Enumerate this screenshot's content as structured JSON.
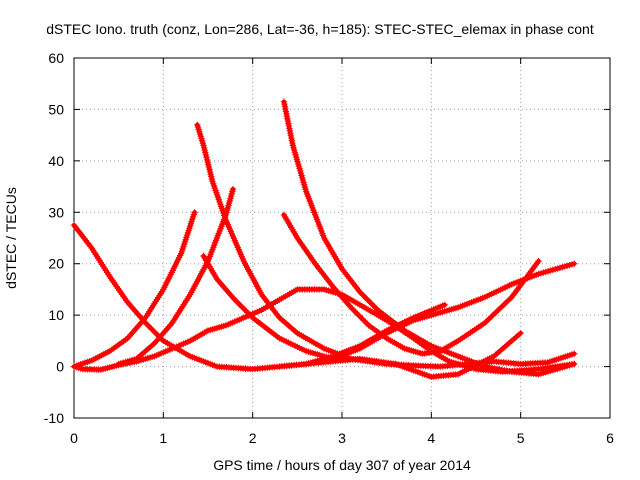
{
  "chart_data": {
    "type": "scatter",
    "title": "dSTEC Iono. truth (conz, Lon=286, Lat=-36, h=185): STEC-STEC_elemax in phase cont",
    "xlabel": "GPS time / hours of day 307 of year 2014",
    "ylabel": "dSTEC  / TECUs",
    "xlim": [
      0,
      6
    ],
    "ylim": [
      -10,
      60
    ],
    "xticks": [
      "0",
      "1",
      "2",
      "3",
      "4",
      "5",
      "6"
    ],
    "yticks": [
      "-10",
      "0",
      "10",
      "20",
      "30",
      "40",
      "50",
      "60"
    ],
    "grid": true,
    "legend": "none",
    "marker": "plus",
    "color": "#ff0000",
    "series": [
      {
        "x": [
          0.0,
          0.1,
          0.3,
          0.5,
          0.7,
          0.9,
          1.1,
          1.3,
          1.4,
          1.5,
          1.7,
          1.9,
          2.1,
          2.3,
          2.5,
          2.8,
          3.0,
          3.2,
          3.5,
          3.8,
          4.0,
          4.2,
          4.5,
          4.8,
          5.2,
          5.6
        ],
        "y": [
          0.0,
          -0.5,
          -0.6,
          0.3,
          1.0,
          2.0,
          3.5,
          5.0,
          6.0,
          7.0,
          8.0,
          9.5,
          11.0,
          13.0,
          15.0,
          15.0,
          14.0,
          12.0,
          9.0,
          5.5,
          3.0,
          1.0,
          -0.5,
          -1.0,
          -0.5,
          0.5
        ]
      },
      {
        "x": [
          0.0,
          0.2,
          0.4,
          0.6,
          0.8,
          1.0,
          1.2,
          1.35
        ],
        "y": [
          0.0,
          1.2,
          3.0,
          5.5,
          9.5,
          15.0,
          22.0,
          30.0
        ]
      },
      {
        "x": [
          0.0,
          0.2,
          0.4,
          0.6,
          0.8,
          1.0,
          1.3,
          1.6,
          2.0,
          2.3,
          2.6,
          2.9,
          3.2,
          3.6,
          4.0,
          4.3,
          4.7,
          5.0
        ],
        "y": [
          27.5,
          23.0,
          17.5,
          12.5,
          8.5,
          5.0,
          2.0,
          0.0,
          -0.5,
          0.0,
          0.5,
          1.0,
          1.5,
          0.5,
          -2.0,
          -1.5,
          2.0,
          6.5
        ]
      },
      {
        "x": [
          0.5,
          0.7,
          0.9,
          1.1,
          1.3,
          1.5,
          1.7,
          1.78
        ],
        "y": [
          0.5,
          1.5,
          4.5,
          8.5,
          14.0,
          20.5,
          29.5,
          34.5
        ]
      },
      {
        "x": [
          1.38,
          1.45,
          1.55,
          1.7,
          1.9,
          2.1,
          2.3,
          2.5,
          2.8,
          3.1,
          3.5,
          3.8,
          4.1,
          4.4,
          4.7,
          5.0,
          5.3,
          5.6
        ],
        "y": [
          47.0,
          43.0,
          36.0,
          28.5,
          20.5,
          14.0,
          9.5,
          6.5,
          3.5,
          1.5,
          0.5,
          0.2,
          0.0,
          0.5,
          1.0,
          0.5,
          0.8,
          2.5
        ]
      },
      {
        "x": [
          1.45,
          1.6,
          1.8,
          2.0,
          2.3,
          2.6,
          2.9,
          3.2,
          3.5,
          3.8,
          4.0,
          4.3,
          4.6,
          4.9,
          5.2,
          5.6
        ],
        "y": [
          21.5,
          17.0,
          13.0,
          9.5,
          5.5,
          3.0,
          1.5,
          3.5,
          6.5,
          9.0,
          10.0,
          11.5,
          13.5,
          16.0,
          18.0,
          20.0
        ]
      },
      {
        "x": [
          2.35,
          2.45,
          2.6,
          2.8,
          3.0,
          3.2,
          3.4,
          3.7,
          4.0,
          4.3,
          4.6,
          4.9,
          5.2,
          5.6
        ],
        "y": [
          51.5,
          43.0,
          34.0,
          25.0,
          19.0,
          14.5,
          11.0,
          7.0,
          4.0,
          2.0,
          0.0,
          -1.0,
          -1.5,
          0.5
        ]
      },
      {
        "x": [
          2.35,
          2.5,
          2.7,
          2.9,
          3.1,
          3.3,
          3.5,
          3.7,
          3.9,
          4.1,
          4.3,
          4.6,
          4.9,
          5.2
        ],
        "y": [
          29.5,
          25.0,
          20.0,
          15.5,
          11.5,
          8.0,
          5.5,
          3.5,
          2.5,
          3.0,
          5.0,
          8.5,
          13.5,
          20.5
        ]
      },
      {
        "x": [
          2.3,
          2.6,
          2.9,
          3.2,
          3.5,
          3.8,
          4.15
        ],
        "y": [
          0.0,
          0.5,
          2.0,
          4.0,
          7.0,
          9.5,
          12.0
        ]
      }
    ]
  }
}
